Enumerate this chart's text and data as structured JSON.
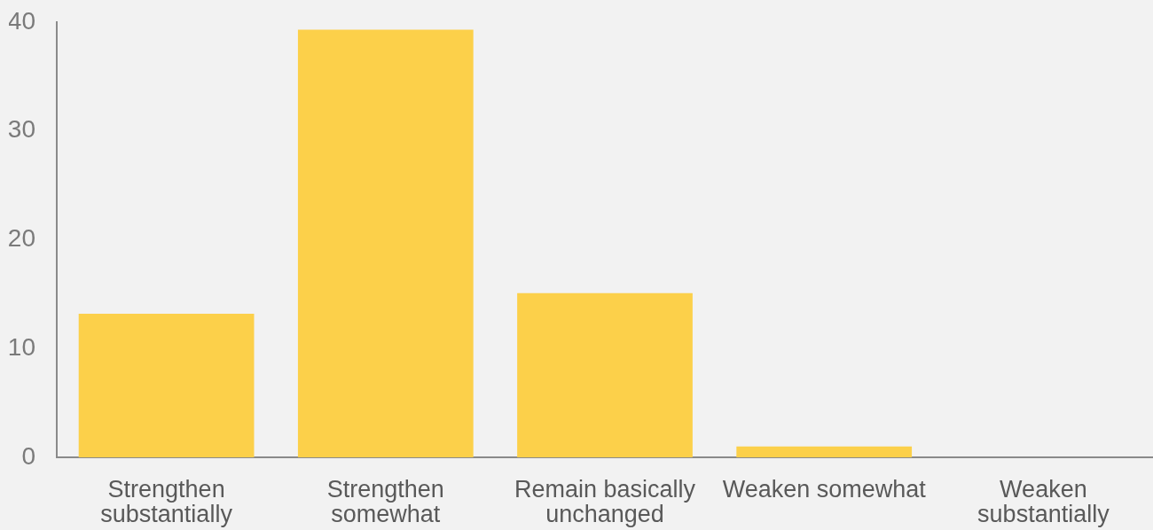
{
  "chart_data": {
    "type": "bar",
    "categories": [
      "Strengthen substantially",
      "Strengthen somewhat",
      "Remain basically unchanged",
      "Weaken somewhat",
      "Weaken substantially"
    ],
    "values": [
      13.2,
      39.3,
      15.1,
      1,
      0
    ],
    "color": "#fcd04a",
    "ylim": [
      0,
      40
    ],
    "yticks": [
      0,
      10,
      20,
      30,
      40
    ]
  }
}
